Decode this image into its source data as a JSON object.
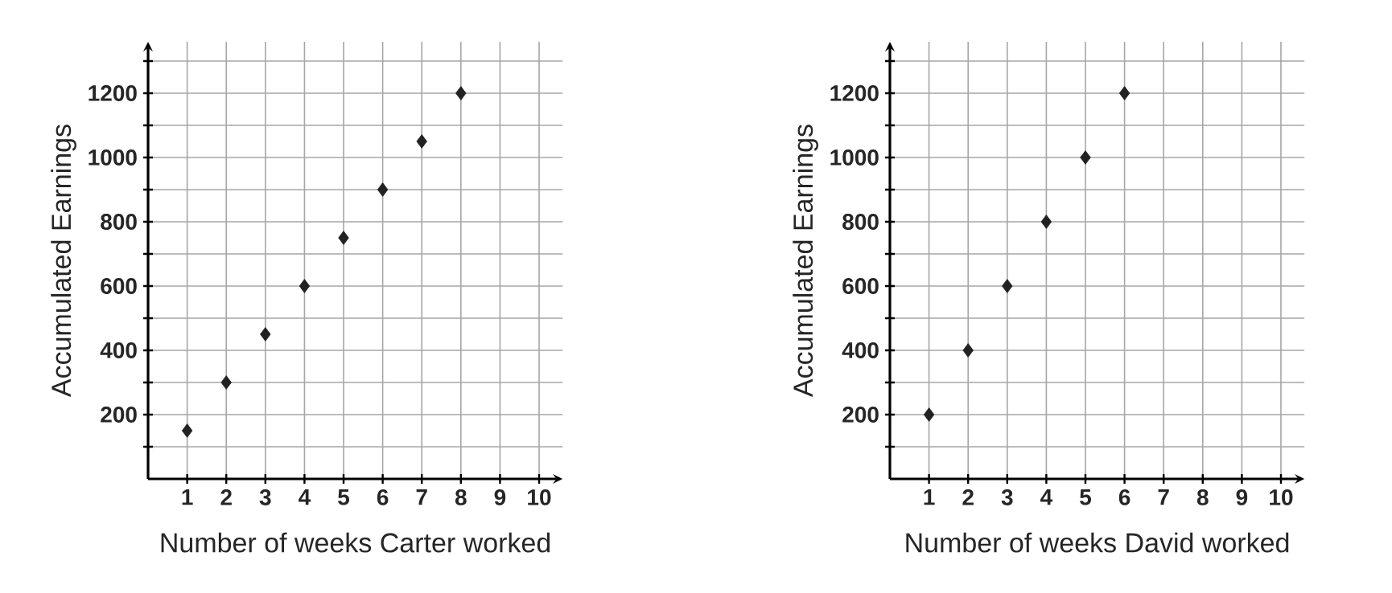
{
  "chart_data": [
    {
      "type": "scatter",
      "xlabel": "Number of weeks Carter worked",
      "ylabel": "Accumulated Earnings",
      "x": [
        1,
        2,
        3,
        4,
        5,
        6,
        7,
        8
      ],
      "values": [
        150,
        300,
        450,
        600,
        750,
        900,
        1050,
        1200
      ],
      "color": "#222222",
      "marker": "diamond",
      "grid": true,
      "xlim": [
        0,
        10.6
      ],
      "ylim": [
        0,
        1360
      ],
      "xticks": [
        1,
        2,
        3,
        4,
        5,
        6,
        7,
        8,
        9,
        10
      ],
      "yticks": [
        {
          "value": 100,
          "label": null
        },
        200,
        {
          "value": 300,
          "label": null
        },
        400,
        {
          "value": 500,
          "label": null
        },
        600,
        {
          "value": 700,
          "label": null
        },
        800,
        {
          "value": 900,
          "label": null
        },
        1000,
        {
          "value": 1100,
          "label": null
        },
        1200,
        {
          "value": 1300,
          "label": null
        }
      ]
    },
    {
      "type": "scatter",
      "xlabel": "Number of weeks David worked",
      "ylabel": "Accumulated Earnings",
      "x": [
        1,
        2,
        3,
        4,
        5,
        6
      ],
      "values": [
        200,
        400,
        600,
        800,
        1000,
        1200
      ],
      "color": "#222222",
      "marker": "diamond",
      "grid": true,
      "xlim": [
        0,
        10.6
      ],
      "ylim": [
        0,
        1360
      ],
      "xticks": [
        1,
        2,
        3,
        4,
        5,
        6,
        7,
        8,
        9,
        10
      ],
      "yticks": [
        {
          "value": 100,
          "label": null
        },
        200,
        {
          "value": 300,
          "label": null
        },
        400,
        {
          "value": 500,
          "label": null
        },
        600,
        {
          "value": 700,
          "label": null
        },
        800,
        {
          "value": 900,
          "label": null
        },
        1000,
        {
          "value": 1100,
          "label": null
        },
        1200,
        {
          "value": 1300,
          "label": null
        }
      ]
    }
  ]
}
